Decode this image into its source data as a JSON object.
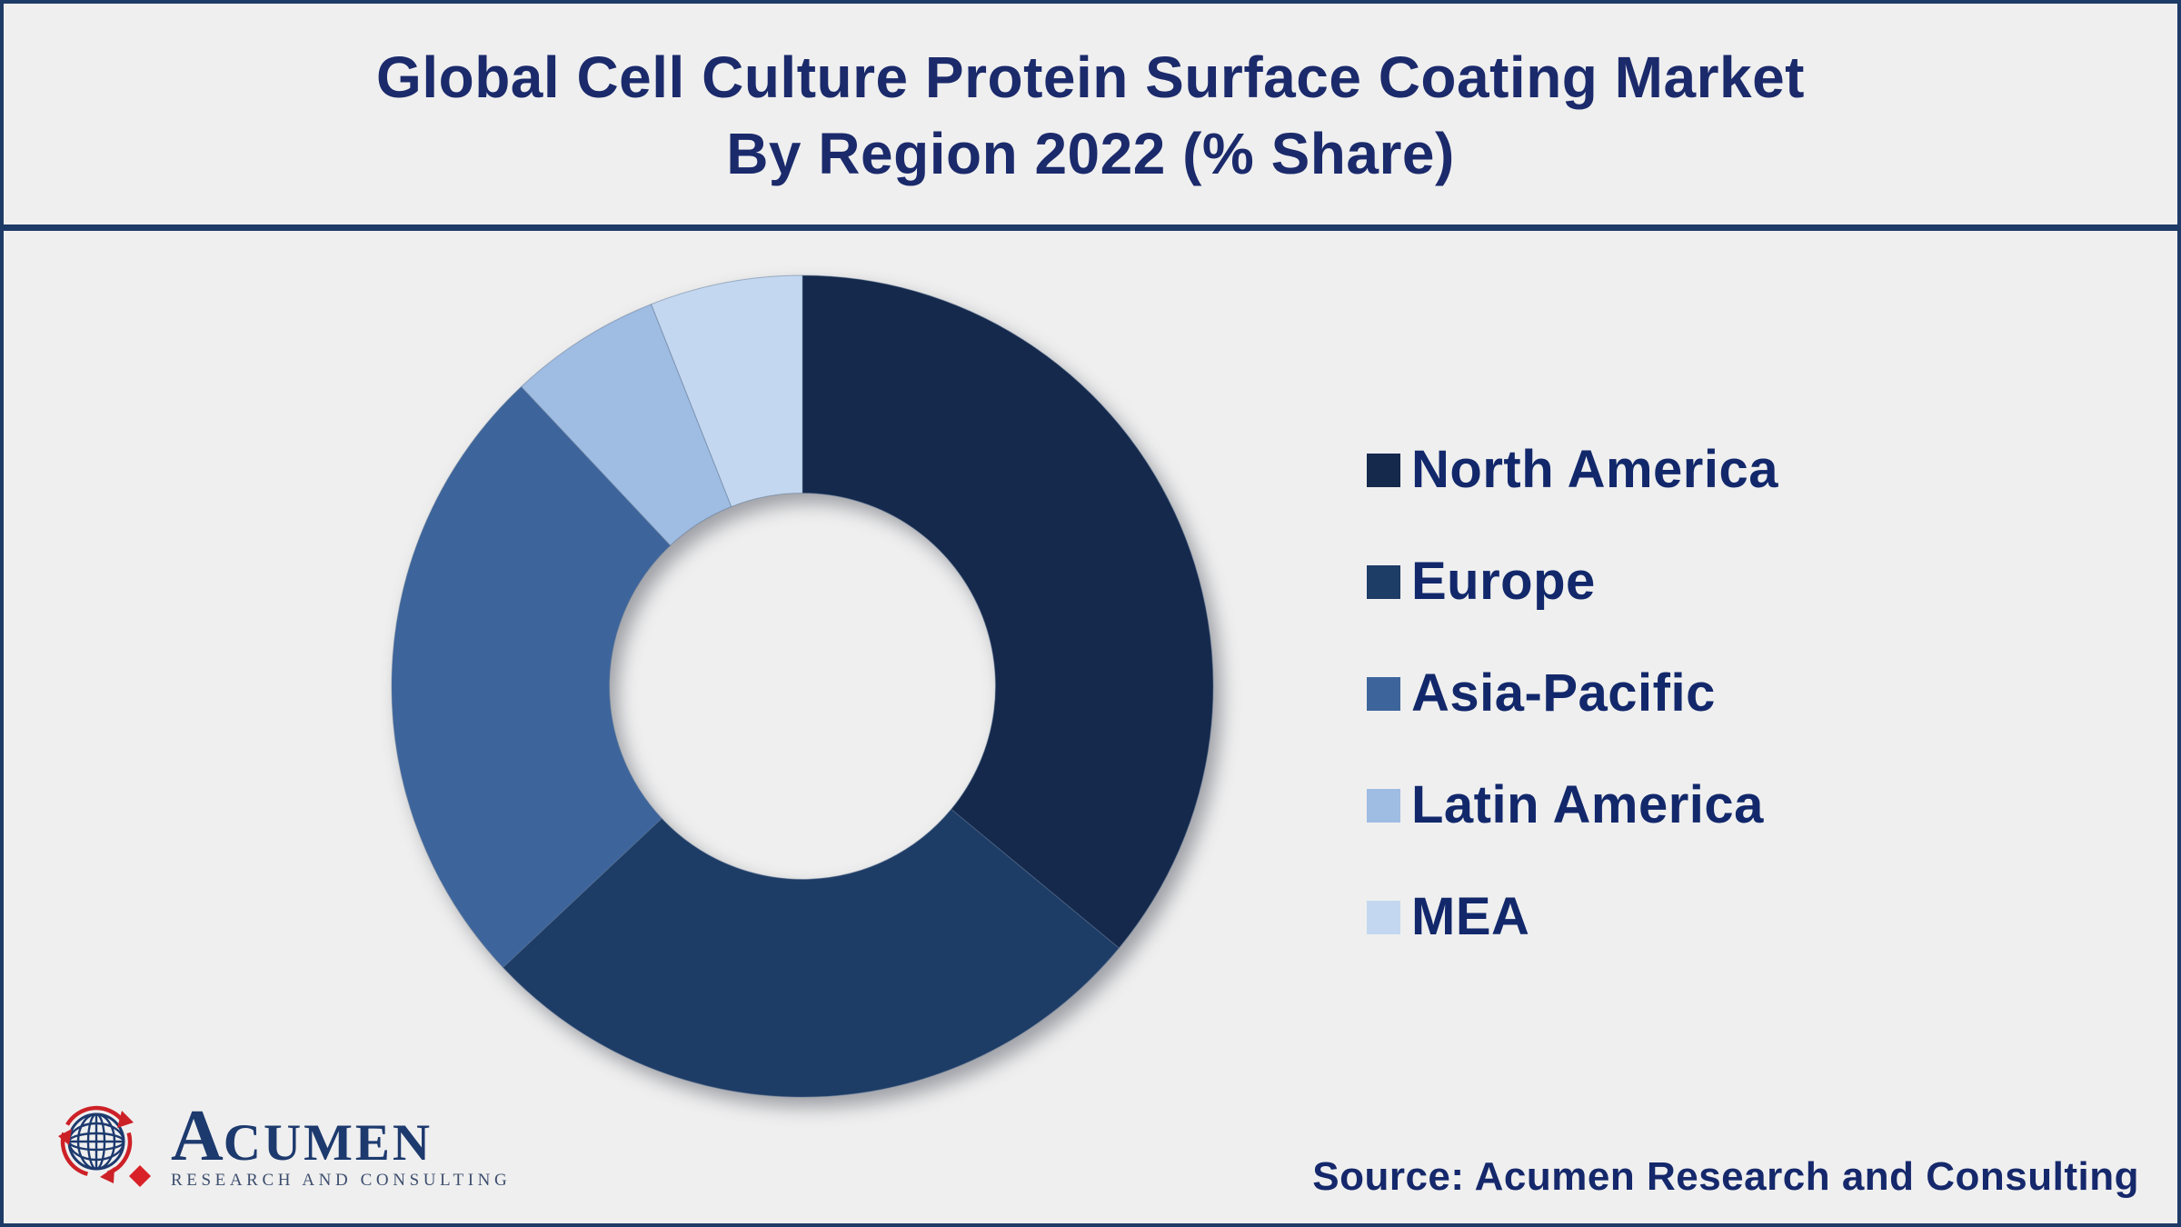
{
  "title": {
    "line1": "Global Cell Culture Protein Surface Coating Market",
    "line2": "By Region 2022 (% Share)"
  },
  "chart_data": {
    "type": "pie",
    "variant": "donut",
    "title": "Global Cell Culture Protein Surface Coating Market By Region 2022 (% Share)",
    "categories": [
      "North America",
      "Europe",
      "Asia-Pacific",
      "Latin America",
      "MEA"
    ],
    "values": [
      36,
      27,
      25,
      6,
      6
    ],
    "unit": "%",
    "colors": [
      "#14294C",
      "#1D3C66",
      "#3D659C",
      "#9FBCE3",
      "#C3D8F0"
    ],
    "start_angle_deg": 0,
    "direction": "clockwise",
    "inner_radius_ratio": 0.47,
    "legend_position": "right",
    "data_labels_visible": false
  },
  "logo": {
    "initial": "A",
    "rest": "CUMEN",
    "tagline": "RESEARCH AND CONSULTING"
  },
  "source": {
    "text": "Source: Acumen Research and Consulting"
  },
  "theme": {
    "background": "#EFEFEF",
    "frame": "#1E3A66",
    "title_color": "#1B2A6B",
    "legend_color": "#12286B",
    "source_color": "#15286B",
    "logo_navy": "#1D3A6E",
    "logo_red": "#CC2127",
    "tagline_color": "#3D4E6E",
    "slice_edge": "rgba(95,118,147,0.5)"
  }
}
